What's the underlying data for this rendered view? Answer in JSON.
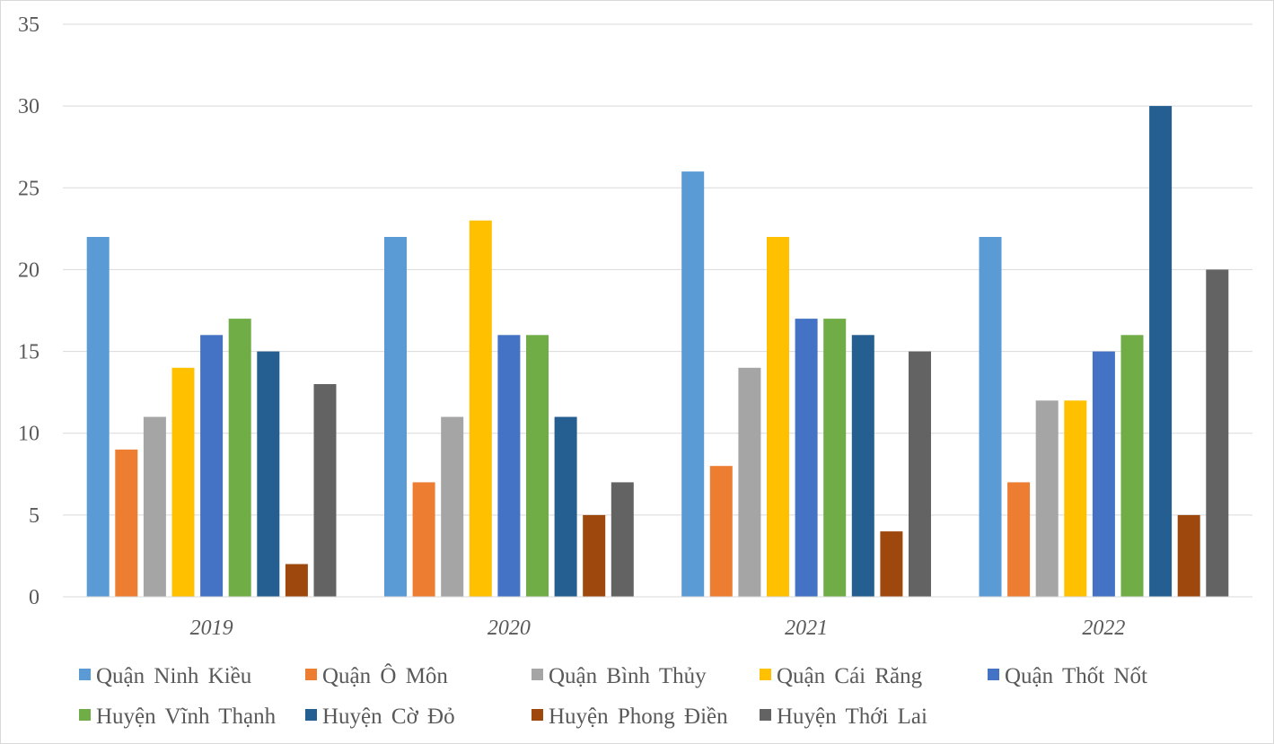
{
  "chart_data": {
    "type": "bar",
    "categories": [
      "2019",
      "2020",
      "2021",
      "2022"
    ],
    "ylim": [
      0,
      35
    ],
    "yticks": [
      0,
      5,
      10,
      15,
      20,
      25,
      30,
      35
    ],
    "grid": true,
    "legend_position": "bottom",
    "series": [
      {
        "name": "Quận Ninh Kiều",
        "color": "#5b9bd5",
        "values": [
          22,
          22,
          26,
          22
        ]
      },
      {
        "name": "Quận Ô Môn",
        "color": "#ed7d31",
        "values": [
          9,
          7,
          8,
          7
        ]
      },
      {
        "name": "Quận Bình Thủy",
        "color": "#a5a5a5",
        "values": [
          11,
          11,
          14,
          12
        ]
      },
      {
        "name": "Quận Cái Răng",
        "color": "#ffc000",
        "values": [
          14,
          23,
          22,
          12
        ]
      },
      {
        "name": "Quận Thốt Nốt",
        "color": "#4472c4",
        "values": [
          16,
          16,
          17,
          15
        ]
      },
      {
        "name": "Huyện Vĩnh Thạnh",
        "color": "#70ad47",
        "values": [
          17,
          16,
          17,
          16
        ]
      },
      {
        "name": "Huyện Cờ Đỏ",
        "color": "#255e91",
        "values": [
          15,
          11,
          16,
          30
        ]
      },
      {
        "name": "Huyện Phong Điền",
        "color": "#9e480e",
        "values": [
          2,
          5,
          4,
          5
        ]
      },
      {
        "name": "Huyện Thới Lai",
        "color": "#636363",
        "values": [
          13,
          7,
          15,
          20
        ]
      }
    ]
  }
}
